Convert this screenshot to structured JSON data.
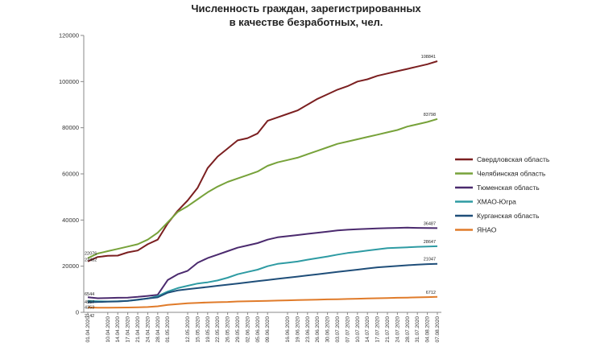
{
  "chart_data": {
    "type": "line",
    "title_lines": [
      "Численность граждан, зарегистрированных",
      "в качестве безработных, чел."
    ],
    "xlabel": "",
    "ylabel": "",
    "ylim": [
      0,
      120000
    ],
    "yticks": [
      0,
      20000,
      40000,
      60000,
      80000,
      100000,
      120000
    ],
    "ytick_labels": [
      "0",
      "20000",
      "40000",
      "60000",
      "80000",
      "100000",
      "120000"
    ],
    "grid": false,
    "legend_position": "right",
    "x": [
      "01.04.2020",
      "07.04.2020",
      "10.04.2020",
      "14.04.2020",
      "17.04.2020",
      "21.04.2020",
      "24.04.2020",
      "28.04.2020",
      "01.05.2020",
      "08.05.2020",
      "12.05.2020",
      "15.05.2020",
      "19.05.2020",
      "22.05.2020",
      "26.05.2020",
      "29.05.2020",
      "02.06.2020",
      "05.06.2020",
      "09.06.2020",
      "12.06.2020",
      "16.06.2020",
      "19.06.2020",
      "23.06.2020",
      "26.06.2020",
      "30.06.2020",
      "03.07.2020",
      "07.07.2020",
      "10.07.2020",
      "14.07.2020",
      "17.07.2020",
      "21.07.2020",
      "24.07.2020",
      "28.07.2020",
      "31.07.2020",
      "04.08.2020",
      "07.08.2020"
    ],
    "x_ticks": [
      "01.04.2020",
      "10.04.2020",
      "14.04.2020",
      "17.04.2020",
      "21.04.2020",
      "24.04.2020",
      "28.04.2020",
      "01.05.2020",
      "12.05.2020",
      "15.05.2020",
      "19.05.2020",
      "22.05.2020",
      "26.05.2020",
      "29.05.2020",
      "02.06.2020",
      "05.06.2020",
      "09.06.2020",
      "16.06.2020",
      "19.06.2020",
      "23.06.2020",
      "26.06.2020",
      "30.06.2020",
      "03.07.2020",
      "07.07.2020",
      "10.07.2020",
      "14.07.2020",
      "17.07.2020",
      "21.07.2020",
      "24.07.2020",
      "28.07.2020",
      "31.07.2020",
      "04.08.2020",
      "07.08.2020"
    ],
    "series": [
      {
        "name": "Свердловская область",
        "color": "#7b1f20",
        "values": [
          22076,
          24000,
          24500,
          24600,
          26000,
          26800,
          29500,
          31500,
          38500,
          44000,
          48500,
          54000,
          62500,
          67500,
          71000,
          74500,
          75500,
          77500,
          83000,
          84500,
          86000,
          87500,
          90000,
          92500,
          94500,
          96500,
          98000,
          100000,
          101000,
          102500,
          103500,
          104500,
          105500,
          106500,
          107500,
          108841
        ],
        "start_label": "22076",
        "end_label": "108841"
      },
      {
        "name": "Челябинская область",
        "color": "#77a23a",
        "values": [
          23482,
          25500,
          26500,
          27500,
          28500,
          29500,
          31500,
          34500,
          39000,
          43500,
          46000,
          49000,
          52000,
          54500,
          56500,
          58000,
          59500,
          61000,
          63500,
          65000,
          66000,
          67000,
          68500,
          70000,
          71500,
          73000,
          74000,
          75000,
          76000,
          77000,
          78000,
          79000,
          80500,
          81500,
          82500,
          83798
        ],
        "start_label": "23482",
        "end_label": "83798"
      },
      {
        "name": "Тюменская область",
        "color": "#4b2a6e",
        "values": [
          6544,
          6100,
          6200,
          6300,
          6400,
          6700,
          7100,
          7600,
          14000,
          16500,
          18000,
          21500,
          23500,
          25000,
          26500,
          28000,
          29000,
          30000,
          31500,
          32500,
          33000,
          33500,
          34000,
          34500,
          35000,
          35500,
          35800,
          36000,
          36200,
          36400,
          36500,
          36600,
          36700,
          36600,
          36550,
          36487
        ],
        "start_label": "6544",
        "end_label": "36487"
      },
      {
        "name": "ХМАО-Югра",
        "color": "#2e9ba3",
        "values": [
          4957,
          4800,
          4700,
          4800,
          5000,
          5400,
          6000,
          7000,
          9000,
          10500,
          11500,
          12500,
          13000,
          13800,
          15000,
          16500,
          17500,
          18500,
          20000,
          21000,
          21500,
          22000,
          22800,
          23500,
          24200,
          25000,
          25700,
          26200,
          26800,
          27300,
          27800,
          28000,
          28200,
          28400,
          28550,
          28647
        ],
        "start_label": "4957",
        "end_label": "28647"
      },
      {
        "name": "Курганская область",
        "color": "#1f4e79",
        "values": [
          4353,
          4500,
          4600,
          4700,
          5000,
          5500,
          6000,
          6500,
          8500,
          9500,
          10000,
          10500,
          11000,
          11500,
          12000,
          12500,
          13000,
          13500,
          14000,
          14500,
          15000,
          15500,
          16000,
          16500,
          17000,
          17500,
          18000,
          18500,
          19000,
          19500,
          19800,
          20100,
          20400,
          20700,
          20900,
          21047
        ],
        "start_label": "4353",
        "end_label": "21047"
      },
      {
        "name": "ЯНАО",
        "color": "#e07b2a",
        "values": [
          2142,
          2000,
          2000,
          2050,
          2100,
          2200,
          2300,
          2600,
          3200,
          3600,
          3900,
          4100,
          4300,
          4400,
          4500,
          4700,
          4800,
          4900,
          5000,
          5100,
          5200,
          5300,
          5400,
          5500,
          5600,
          5700,
          5800,
          5900,
          6000,
          6100,
          6200,
          6300,
          6400,
          6500,
          6600,
          6712
        ],
        "start_label": "2142",
        "end_label": "6712"
      }
    ]
  }
}
